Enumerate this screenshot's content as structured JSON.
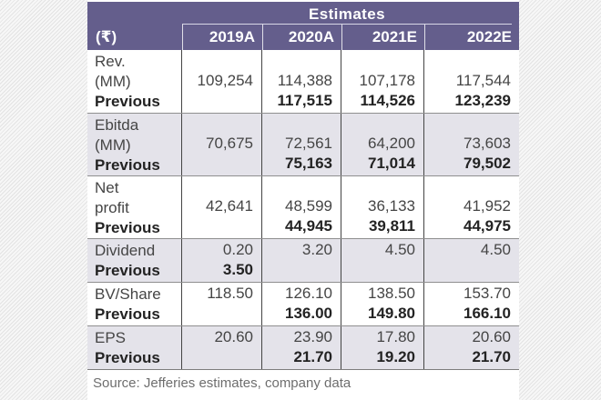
{
  "colors": {
    "header_purple": "#645e8c",
    "row_shaded": "#e4e3ea",
    "divider_dark": "#454545",
    "divider_light": "#8f8f8f",
    "text_regular": "#454545",
    "text_bold": "#232323",
    "source_gray": "#6e6e6e"
  },
  "chart_data": {
    "type": "table",
    "title": "Estimates",
    "currency_header": "(₹)",
    "year_columns": [
      "2019A",
      "2020A",
      "2021E",
      "2022E"
    ],
    "previous_label": "Previous",
    "rows": [
      {
        "metric": "Rev. (MM)",
        "metric_lines": [
          "Rev.",
          "(MM)"
        ],
        "current": [
          "109,254",
          "114,388",
          "107,178",
          "117,544"
        ],
        "previous": [
          "",
          "117,515",
          "114,526",
          "123,239"
        ]
      },
      {
        "metric": "Ebitda (MM)",
        "metric_lines": [
          "Ebitda",
          "(MM)"
        ],
        "current": [
          "70,675",
          "72,561",
          "64,200",
          "73,603"
        ],
        "previous": [
          "",
          "75,163",
          "71,014",
          "79,502"
        ]
      },
      {
        "metric": "Net profit",
        "metric_lines": [
          "Net",
          "profit"
        ],
        "current": [
          "42,641",
          "48,599",
          "36,133",
          "41,952"
        ],
        "previous": [
          "",
          "44,945",
          "39,811",
          "44,975"
        ]
      },
      {
        "metric": "Dividend",
        "metric_lines": [
          "Dividend"
        ],
        "current": [
          "0.20",
          "3.20",
          "4.50",
          "4.50"
        ],
        "previous": [
          "3.50",
          "",
          "",
          ""
        ]
      },
      {
        "metric": "BV/Share",
        "metric_lines": [
          "BV/Share"
        ],
        "current": [
          "118.50",
          "126.10",
          "138.50",
          "153.70"
        ],
        "previous": [
          "",
          "136.00",
          "149.80",
          "166.10"
        ]
      },
      {
        "metric": "EPS",
        "metric_lines": [
          "EPS"
        ],
        "current": [
          "20.60",
          "23.90",
          "17.80",
          "20.60"
        ],
        "previous": [
          "",
          "21.70",
          "19.20",
          "21.70"
        ]
      }
    ],
    "source": "Source: Jefferies estimates, company data"
  }
}
